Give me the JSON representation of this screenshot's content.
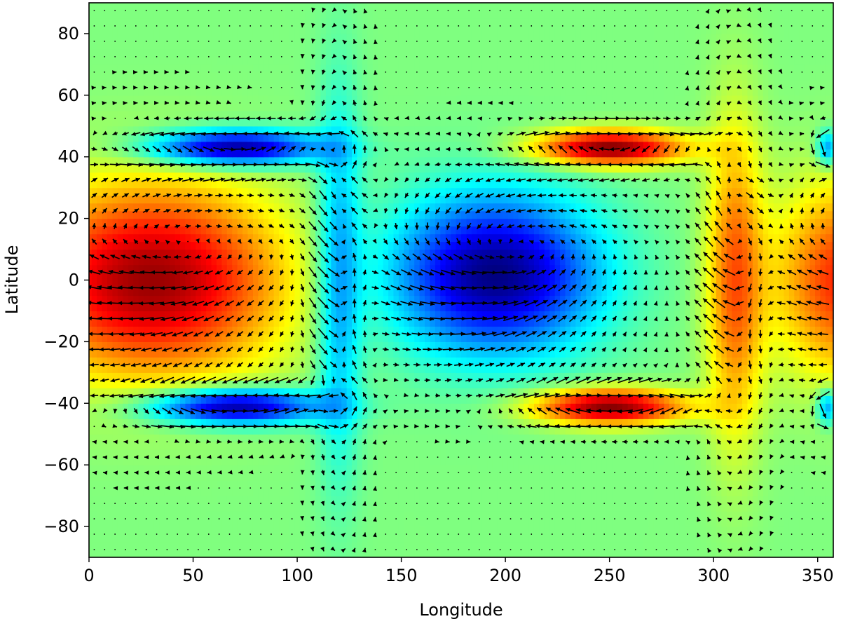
{
  "chart_data": {
    "type": "heatmap",
    "title": "",
    "xlabel": "Longitude",
    "ylabel": "Latitude",
    "xlim": [
      0,
      357.5
    ],
    "ylim": [
      -90,
      90
    ],
    "x_ticks": [
      0,
      50,
      100,
      150,
      200,
      250,
      300,
      350
    ],
    "x_tick_labels": [
      "0",
      "50",
      "100",
      "150",
      "200",
      "250",
      "300",
      "350"
    ],
    "y_ticks": [
      -80,
      -60,
      -40,
      -20,
      0,
      20,
      40,
      60,
      80
    ],
    "y_tick_labels": [
      "−80",
      "−60",
      "−40",
      "−20",
      "0",
      "20",
      "40",
      "60",
      "80"
    ],
    "colormap": "jet",
    "grid": false,
    "legend": "none",
    "field_description": "Filled color field with overlaid black wind-vector quiver arrows on a 2.5° grid",
    "field_features": [
      {
        "sign": "positive",
        "lon": 30,
        "lat": 0,
        "lon_width": 70,
        "lat_width": 22,
        "amplitude": 0.95
      },
      {
        "sign": "positive",
        "lon": 365,
        "lat": 0,
        "lon_width": 40,
        "lat_width": 22,
        "amplitude": 0.7
      },
      {
        "sign": "negative",
        "lon": 195,
        "lat": 2,
        "lon_width": 55,
        "lat_width": 18,
        "amplitude": 1.0
      },
      {
        "sign": "negative",
        "lon": 70,
        "lat": 43,
        "lon_width": 45,
        "lat_width": 4,
        "amplitude": 1.0
      },
      {
        "sign": "negative",
        "lon": 70,
        "lat": -41,
        "lon_width": 45,
        "lat_width": 4,
        "amplitude": 1.0
      },
      {
        "sign": "positive",
        "lon": 250,
        "lat": 43,
        "lon_width": 40,
        "lat_width": 4,
        "amplitude": 1.0
      },
      {
        "sign": "positive",
        "lon": 250,
        "lat": -41,
        "lon_width": 40,
        "lat_width": 4,
        "amplitude": 1.0
      },
      {
        "sign": "positive",
        "lon": 310,
        "lat": 0,
        "lon_width": 15,
        "lat_width": 35,
        "amplitude": 0.55
      },
      {
        "sign": "negative",
        "lon": 120,
        "lat": 0,
        "lon_width": 12,
        "lat_width": 40,
        "amplitude": 0.45
      },
      {
        "sign": "negative",
        "lon": 355,
        "lat": 43,
        "lon_width": 6,
        "lat_width": 4,
        "amplitude": 0.5
      },
      {
        "sign": "negative",
        "lon": 355,
        "lat": -41,
        "lon_width": 6,
        "lat_width": 4,
        "amplitude": 0.5
      }
    ],
    "vector_grid_spacing_deg": 5
  }
}
